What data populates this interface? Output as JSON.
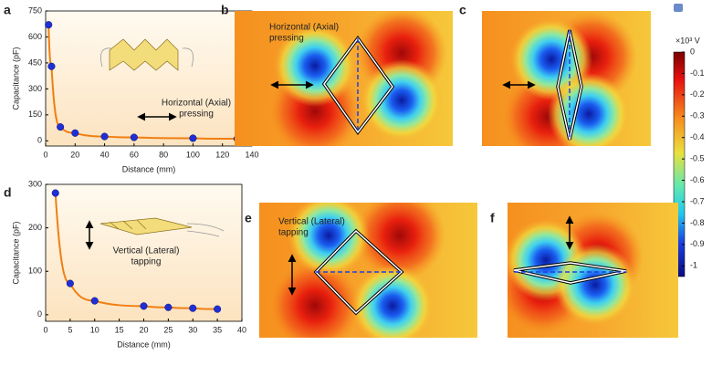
{
  "chart_data": [
    {
      "type": "scatter",
      "panel_label": "a",
      "ylabel": "Capacitance (pF)",
      "xlabel": "Distance (mm)",
      "annotation": [
        "Horizontal (Axial)",
        "pressing"
      ],
      "x": [
        2,
        4,
        10,
        20,
        40,
        60,
        100,
        130
      ],
      "values": [
        670,
        430,
        80,
        45,
        25,
        20,
        15,
        12
      ],
      "color": "#1f2fd6",
      "line_color": "#f07f13",
      "xlim": [
        0,
        140
      ],
      "xticks": [
        0,
        20,
        40,
        60,
        80,
        100,
        120,
        140
      ],
      "ylim": [
        -30,
        750
      ],
      "yticks": [
        0,
        150,
        300,
        450,
        600,
        750
      ]
    },
    {
      "type": "scatter",
      "panel_label": "d",
      "ylabel": "Capacitance (pF)",
      "xlabel": "Distance (mm)",
      "annotation": [
        "Vertical (Lateral)",
        "tapping"
      ],
      "x": [
        2,
        5,
        10,
        20,
        25,
        30,
        35
      ],
      "values": [
        280,
        72,
        32,
        20,
        17,
        15,
        13
      ],
      "color": "#1f2fd6",
      "line_color": "#f07f13",
      "xlim": [
        0,
        40
      ],
      "xticks": [
        0,
        5,
        10,
        15,
        20,
        25,
        30,
        35,
        40
      ],
      "ylim": [
        -15,
        300
      ],
      "yticks": [
        0,
        100,
        200,
        300
      ]
    },
    {
      "type": "colorbar",
      "unit_label": "×10³ V",
      "ylim": [
        -1.05,
        0
      ],
      "yticks": [
        0,
        -0.1,
        -0.2,
        -0.3,
        -0.4,
        -0.5,
        -0.6,
        -0.7,
        -0.8,
        -0.9,
        -1
      ]
    }
  ],
  "panels": [
    {
      "label": "b",
      "annotation": [
        "Horizontal (Axial)",
        "pressing"
      ]
    },
    {
      "label": "c"
    },
    {
      "label": "e",
      "annotation": [
        "Vertical (Lateral)",
        "tapping"
      ]
    },
    {
      "label": "f"
    }
  ]
}
